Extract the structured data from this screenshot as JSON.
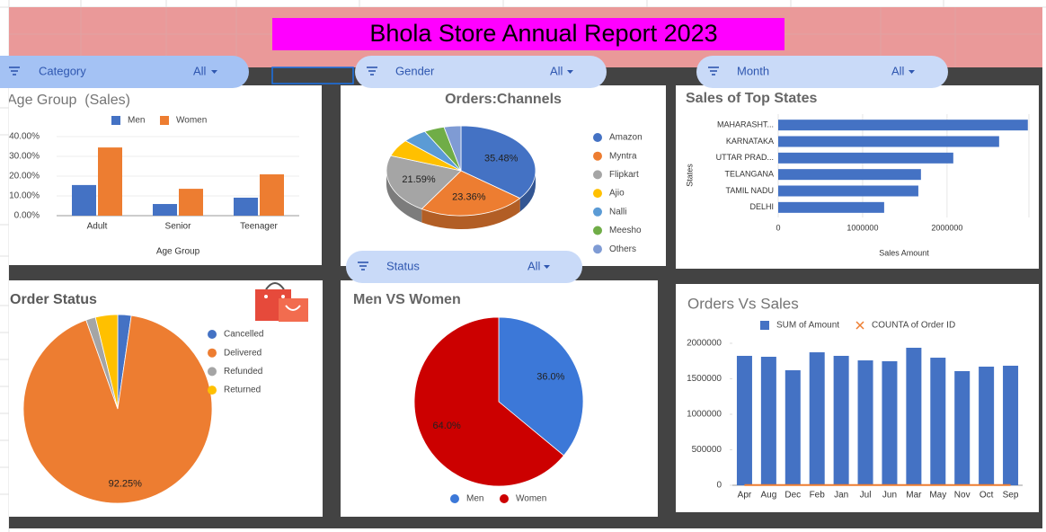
{
  "header": {
    "title": "Bhola Store Annual Report 2023"
  },
  "filters": [
    {
      "label": "Category",
      "value": "All"
    },
    {
      "label": "Gender",
      "value": "All"
    },
    {
      "label": "Month",
      "value": "All"
    },
    {
      "label": "Status",
      "value": "All"
    }
  ],
  "chart_data": [
    {
      "type": "bar",
      "title": "Age Group  (Sales)",
      "x_label": "Age Group",
      "categories": [
        "Adult",
        "Senior",
        "Teenager"
      ],
      "series": [
        {
          "name": "Men",
          "color": "#4472c4",
          "values": [
            15.5,
            5.9,
            9.1
          ]
        },
        {
          "name": "Women",
          "color": "#ed7d31",
          "values": [
            34.5,
            13.6,
            20.9
          ]
        }
      ],
      "ylim": [
        0,
        40
      ],
      "yticks": [
        {
          "value": 0,
          "label": "0.00%"
        },
        {
          "value": 10,
          "label": "10.00%"
        },
        {
          "value": 20,
          "label": "20.00%"
        },
        {
          "value": 30,
          "label": "30.00%"
        },
        {
          "value": 40,
          "label": "40.00%"
        }
      ],
      "grid": true,
      "legend": "top"
    },
    {
      "type": "pie",
      "title": "Orders:Channels",
      "3d": true,
      "categories": [
        "Amazon",
        "Myntra",
        "Flipkart",
        "Ajio",
        "Nalli",
        "Meesho",
        "Others"
      ],
      "values": [
        35.48,
        23.36,
        21.59,
        6.2,
        5.3,
        4.4,
        3.67
      ],
      "value_labels": [
        "35.48%",
        "23.36%",
        "21.59%",
        null,
        null,
        null,
        null
      ],
      "colors": [
        "#4472c4",
        "#ed7d31",
        "#a5a5a5",
        "#ffc000",
        "#5b9bd5",
        "#70ad47",
        "#7f9bd4"
      ],
      "legend": "right"
    },
    {
      "type": "bar",
      "orientation": "horizontal",
      "title": "Sales of Top States",
      "x_label": "Sales Amount",
      "y_label": "States",
      "categories": [
        "MAHARASHT...",
        "KARNATAKA",
        "UTTAR PRAD...",
        "TELANGANA",
        "TAMIL NADU",
        "DELHI"
      ],
      "values": [
        2957000,
        2617000,
        2074000,
        1691000,
        1660000,
        1255000
      ],
      "color": "#4472c4",
      "xlim": [
        0,
        2970000
      ],
      "xticks": [
        0,
        1000000,
        2000000
      ],
      "grid": true
    },
    {
      "type": "pie",
      "title": "Order Status",
      "categories": [
        "Cancelled",
        "Delivered",
        "Refunded",
        "Returned"
      ],
      "values": [
        2.3,
        92.25,
        1.65,
        3.8
      ],
      "value_labels": [
        null,
        "92.25%",
        null,
        null
      ],
      "colors": [
        "#4472c4",
        "#ed7d31",
        "#a5a5a5",
        "#ffc000"
      ],
      "legend": "right"
    },
    {
      "type": "pie",
      "title": "Men VS Women",
      "categories": [
        "Men",
        "Women"
      ],
      "values": [
        36.0,
        64.0
      ],
      "value_labels": [
        "36.0%",
        "64.0%"
      ],
      "colors": [
        "#3c78d8",
        "#cc0000"
      ],
      "legend": "bottom"
    },
    {
      "type": "bar",
      "title": "Orders Vs Sales",
      "categories": [
        "Apr",
        "Aug",
        "Dec",
        "Feb",
        "Jan",
        "Jul",
        "Jun",
        "Mar",
        "May",
        "Nov",
        "Oct",
        "Sep"
      ],
      "series": [
        {
          "name": "SUM of Amount",
          "color": "#4472c4",
          "values": [
            1823000,
            1810000,
            1620000,
            1873000,
            1823000,
            1759000,
            1747000,
            1937000,
            1797000,
            1608000,
            1671000,
            1684000
          ]
        },
        {
          "name": "COUNTA of Order ID",
          "color": "#ed7d31",
          "type": "line",
          "values": [
            3000,
            3000,
            3000,
            3000,
            3000,
            3000,
            3000,
            3000,
            3000,
            3000,
            3000,
            3000
          ]
        }
      ],
      "ylim": [
        0,
        2000000
      ],
      "yticks": [
        0,
        500000,
        1000000,
        1500000,
        2000000
      ],
      "grid": false,
      "legend": "top"
    }
  ]
}
